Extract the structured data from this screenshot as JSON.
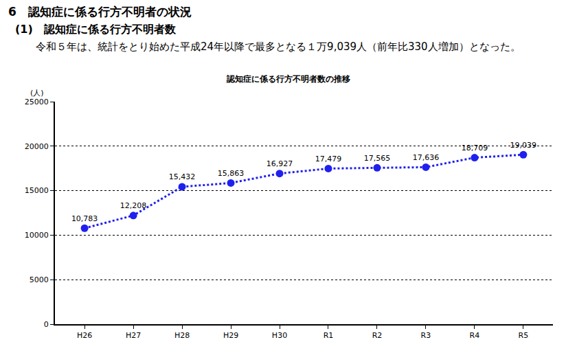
{
  "heading": "6　認知症に係る行方不明者の状況",
  "subheading": "(1)　認知症に係る行方不明者数",
  "paragraph": "令和５年は、統計をとり始めた平成24年以降で最多となる１万9,039人（前年比330人増加）となった。",
  "chart_data": {
    "type": "line",
    "title": "認知症に係る行方不明者数の推移",
    "ylabel": "(人)",
    "categories": [
      "H26",
      "H27",
      "H28",
      "H29",
      "H30",
      "R1",
      "R2",
      "R3",
      "R4",
      "R5"
    ],
    "values": [
      10783,
      12208,
      15432,
      15863,
      16927,
      17479,
      17565,
      17636,
      18709,
      19039
    ],
    "value_labels": [
      "10,783",
      "12,208",
      "15,432",
      "15,863",
      "16,927",
      "17,479",
      "17,565",
      "17,636",
      "18,709",
      "19,039"
    ],
    "data_labels": true,
    "color": "#2020ee",
    "marker": "circle",
    "line_style": "dot",
    "ylim": [
      0,
      25000
    ],
    "yticks": [
      0,
      5000,
      10000,
      15000,
      20000,
      25000
    ],
    "grid": true
  }
}
